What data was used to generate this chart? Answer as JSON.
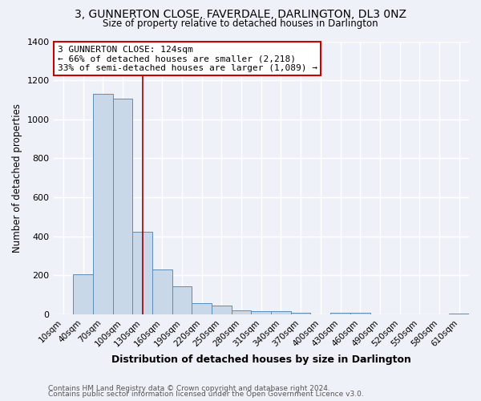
{
  "title": "3, GUNNERTON CLOSE, FAVERDALE, DARLINGTON, DL3 0NZ",
  "subtitle": "Size of property relative to detached houses in Darlington",
  "xlabel": "Distribution of detached houses by size in Darlington",
  "ylabel": "Number of detached properties",
  "bar_values": [
    0,
    207,
    1130,
    1105,
    425,
    232,
    145,
    58,
    45,
    22,
    15,
    18,
    10,
    0,
    10,
    10,
    0,
    0,
    0,
    0,
    5
  ],
  "bar_labels": [
    "10sqm",
    "40sqm",
    "70sqm",
    "100sqm",
    "130sqm",
    "160sqm",
    "190sqm",
    "220sqm",
    "250sqm",
    "280sqm",
    "310sqm",
    "340sqm",
    "370sqm",
    "400sqm",
    "430sqm",
    "460sqm",
    "490sqm",
    "520sqm",
    "550sqm",
    "580sqm",
    "610sqm"
  ],
  "bar_color": "#c8d8e8",
  "bar_edge_color": "#5b8db8",
  "background_color": "#eef2f8",
  "grid_color": "#ffffff",
  "vline_x": 4.0,
  "vline_color": "#990000",
  "annotation_text": "3 GUNNERTON CLOSE: 124sqm\n← 66% of detached houses are smaller (2,218)\n33% of semi-detached houses are larger (1,089) →",
  "annotation_box_color": "#ffffff",
  "annotation_box_edge": "#cc0000",
  "ylim": [
    0,
    1400
  ],
  "yticks": [
    0,
    200,
    400,
    600,
    800,
    1000,
    1200,
    1400
  ],
  "footnote1": "Contains HM Land Registry data © Crown copyright and database right 2024.",
  "footnote2": "Contains public sector information licensed under the Open Government Licence v3.0."
}
